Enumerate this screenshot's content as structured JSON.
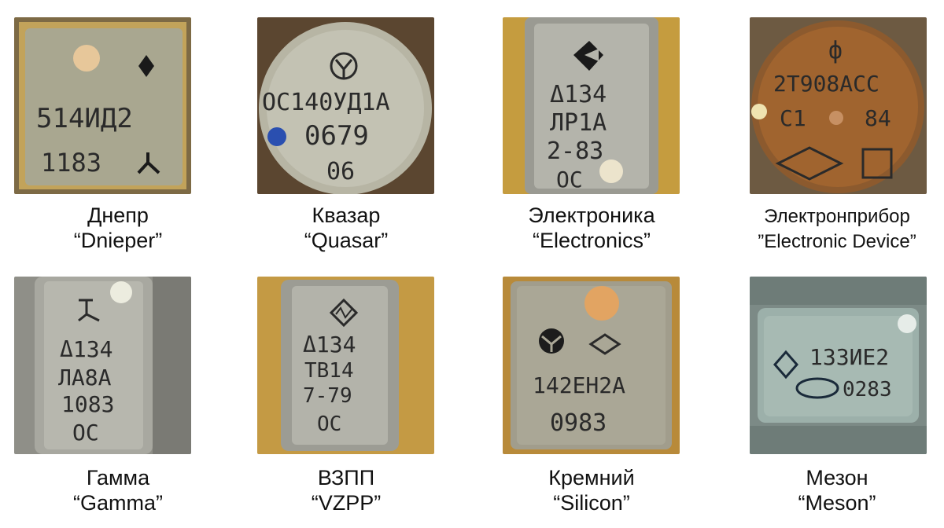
{
  "tiles": [
    {
      "ru": "Днепр",
      "en": "“Dnieper”",
      "marks": [
        "514ИД2",
        "1183"
      ]
    },
    {
      "ru": "Квазар",
      "en": "“Quasar”",
      "marks": [
        "ОС140УД1А",
        "0679",
        "06"
      ]
    },
    {
      "ru": "Электроника",
      "en": "“Electronics”",
      "marks": [
        "Δ134",
        "ЛР1А",
        "2-83",
        "ОС"
      ]
    },
    {
      "ru": "Электронприбор",
      "en": "”Electronic Device”",
      "marks": [
        "2Т908АСС",
        "С1",
        "84",
        "ф"
      ]
    },
    {
      "ru": "Гамма",
      "en": "“Gamma”",
      "marks": [
        "Δ134",
        "ЛА8А",
        "1083",
        "ОС"
      ]
    },
    {
      "ru": "ВЗПП",
      "en": "“VZPP”",
      "marks": [
        "Δ134",
        "ТВ14",
        "7-79",
        "ОС"
      ]
    },
    {
      "ru": "Кремний",
      "en": "“Silicon”",
      "marks": [
        "142ЕН2А",
        "0983"
      ]
    },
    {
      "ru": "Мезон",
      "en": "“Meson”",
      "marks": [
        "133ИЕ2",
        "0283"
      ]
    }
  ],
  "colors": {
    "gold": "#b8913a",
    "gray_chip": "#a9a89c",
    "copper": "#9a5a2a",
    "blue_dot": "#2a4fb0"
  }
}
